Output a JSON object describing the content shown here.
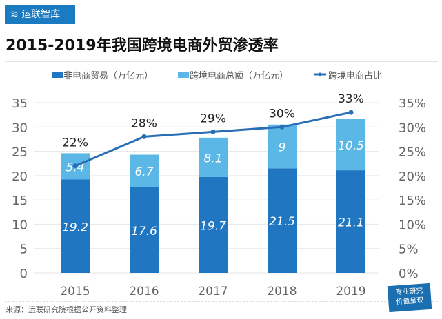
{
  "brand": "运联智库",
  "source": "来源：运联研究院根据公开资料整理",
  "stamp": [
    "专业研究",
    "价值呈现"
  ],
  "colors": {
    "non_ecom": "#2176c1",
    "ecom": "#5bb8e6",
    "line": "#2a6fb5",
    "brand": "#1a7bc0"
  },
  "chart_data": {
    "type": "bar",
    "title": "2015-2019年我国跨境电商外贸渗透率",
    "categories": [
      "2015",
      "2016",
      "2017",
      "2018",
      "2019"
    ],
    "stacked": true,
    "series": [
      {
        "name": "非电商贸易（万亿元）",
        "type": "bar",
        "axis": "left",
        "values": [
          19.2,
          17.6,
          19.7,
          21.5,
          21.1
        ]
      },
      {
        "name": "跨境电商总额（万亿元）",
        "type": "bar",
        "axis": "left",
        "values": [
          5.4,
          6.7,
          8.1,
          9,
          10.5
        ]
      },
      {
        "name": "跨境电商占比",
        "type": "line",
        "axis": "right",
        "values": [
          22,
          28,
          29,
          30,
          33
        ],
        "labels": [
          "22%",
          "28%",
          "29%",
          "30%",
          "33%"
        ]
      }
    ],
    "ylim": [
      0,
      35
    ],
    "yticks": [
      0,
      5,
      10,
      15,
      20,
      25,
      30,
      35
    ],
    "y2lim": [
      0,
      35
    ],
    "y2ticks": [
      "0%",
      "5%",
      "10%",
      "15%",
      "20%",
      "25%",
      "30%",
      "35%"
    ],
    "legend": "top",
    "grid": true
  }
}
